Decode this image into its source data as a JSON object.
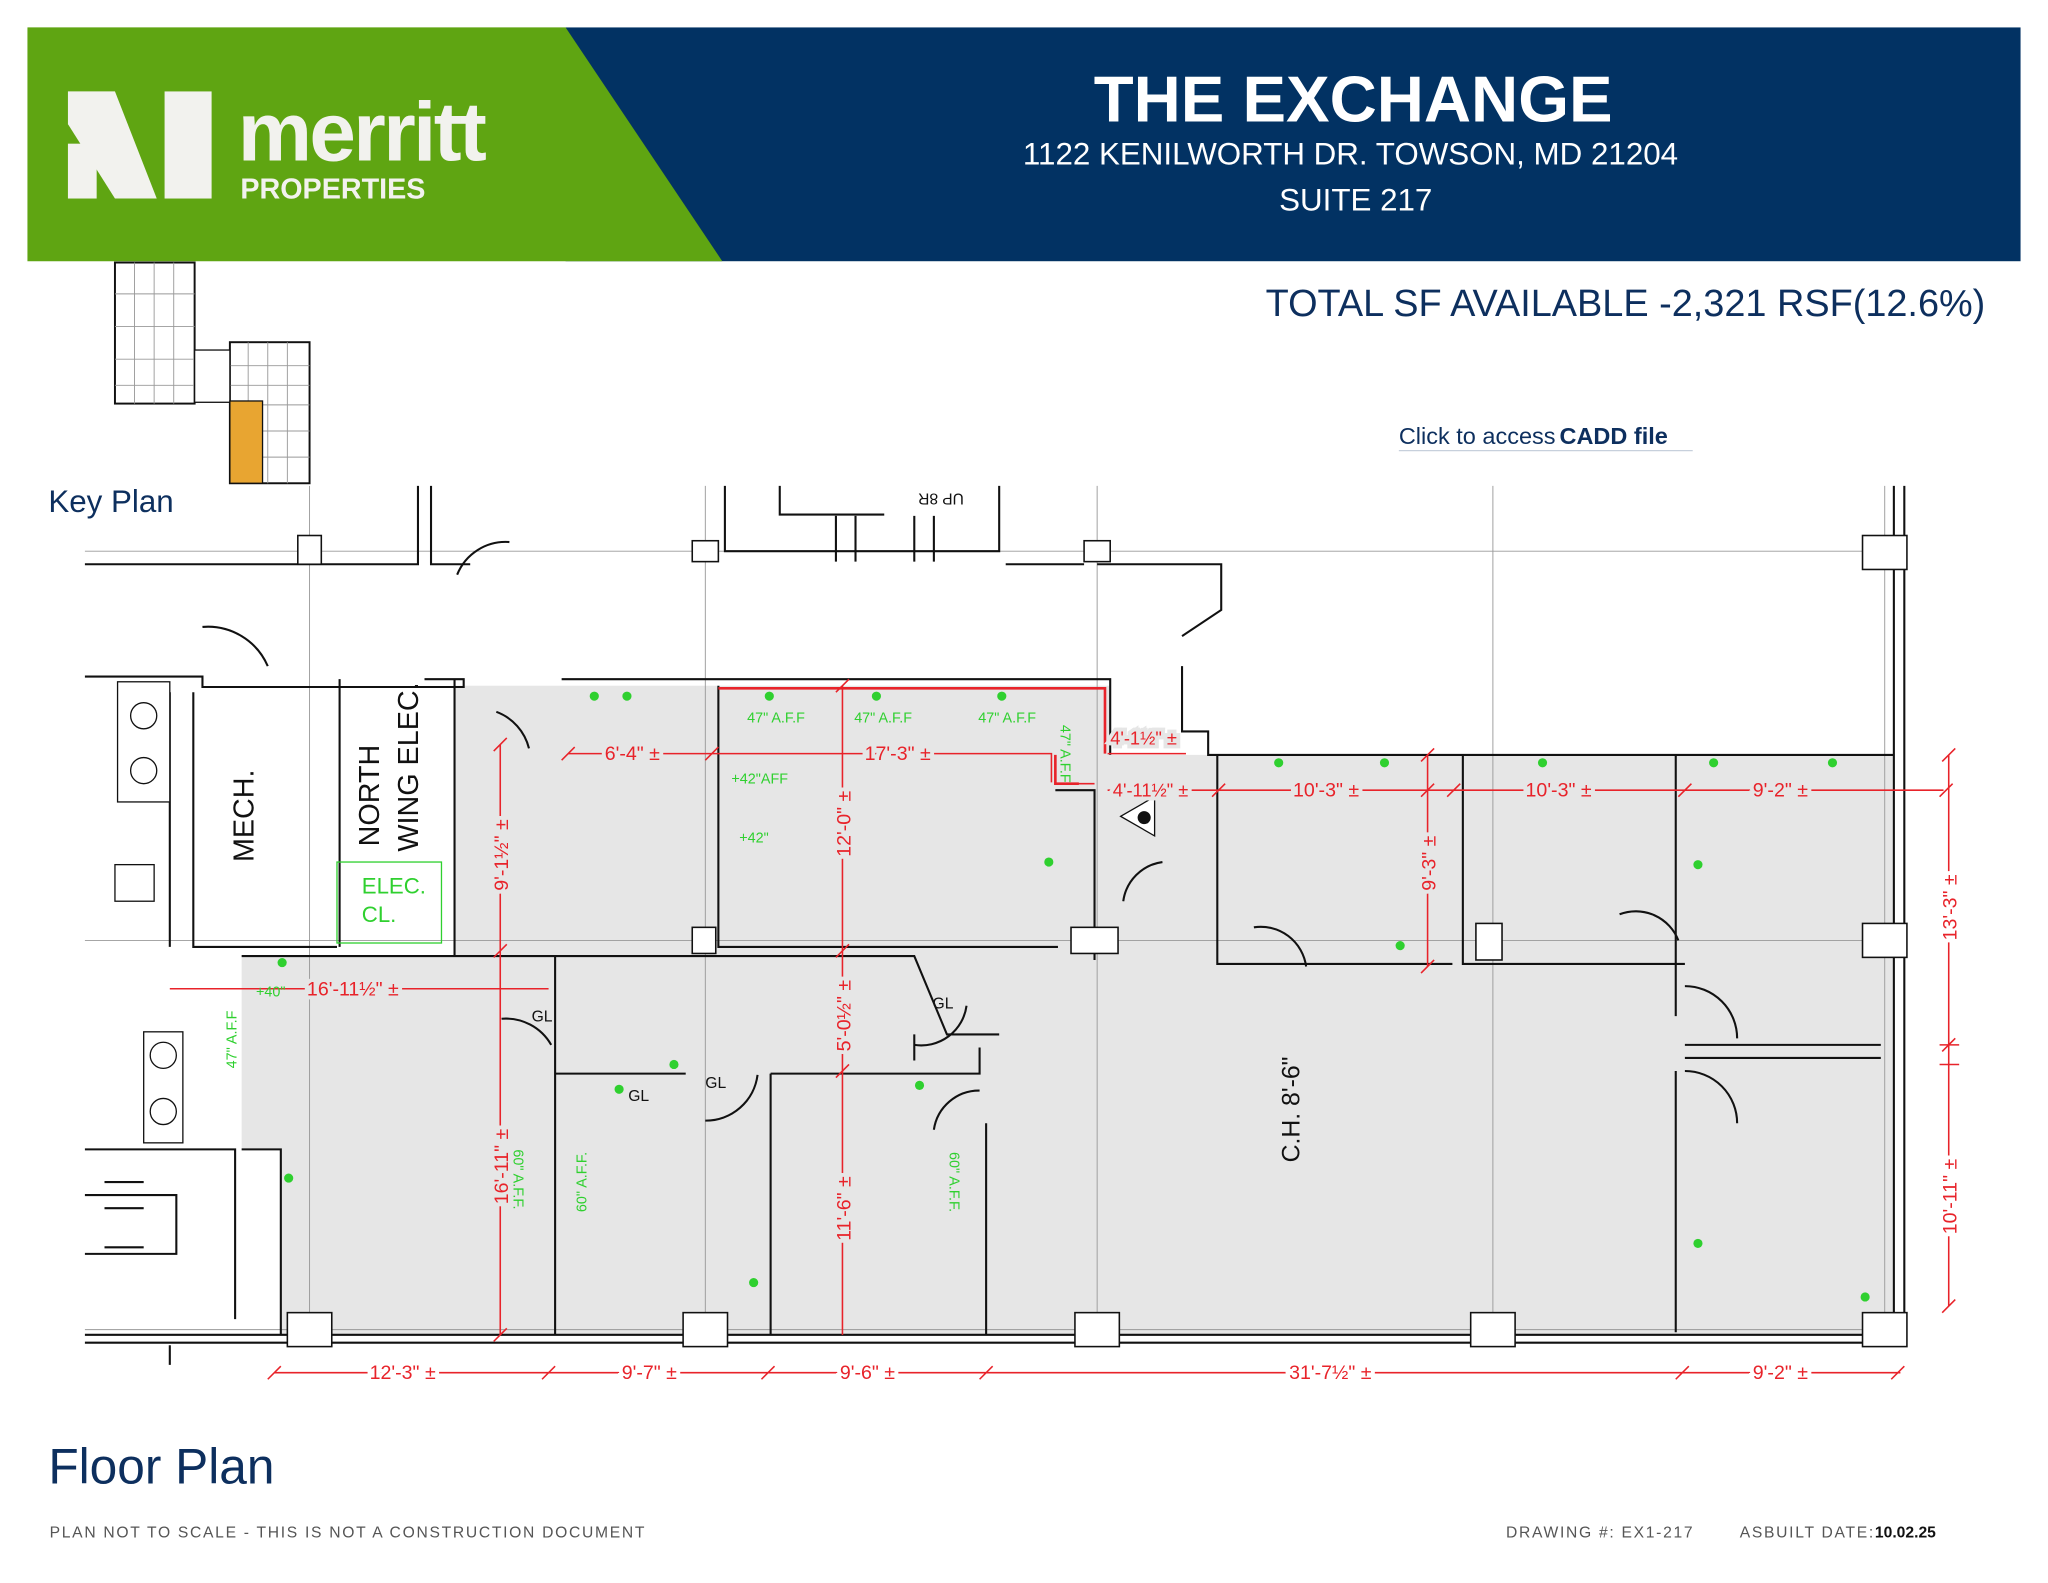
{
  "header": {
    "brand_name": "merritt",
    "brand_sub": "PROPERTIES",
    "title": "THE EXCHANGE",
    "address": "1122 KENILWORTH DR.  TOWSON, MD  21204",
    "suite": "SUITE 217",
    "green": "#5fa512",
    "navy": "#023263"
  },
  "total_sf": "TOTAL SF AVAILABLE -2,321 RSF(12.6%)",
  "cadd_link": {
    "prefix": "Click to access",
    "bold": "CADD file"
  },
  "key_plan": {
    "label": "Key Plan",
    "highlight_color": "#e8a531"
  },
  "floor_plan": {
    "title": "Floor Plan",
    "rooms": {
      "mech": "MECH.",
      "north": "NORTH",
      "wing_elec": "WING ELEC.",
      "elec": "ELEC.",
      "cl": "CL.",
      "ceiling": "C.H. 8'-6\"",
      "stair": "UP 8R",
      "gl": [
        "GL",
        "GL",
        "GL",
        "GL"
      ]
    },
    "dimensions": {
      "d1": "6'-4\" ±",
      "d2": "17'-3\" ±",
      "d3": "4'-1½\" ±",
      "d4": "4'-11½\" ±",
      "d5": "10'-3\" ±",
      "d6": "10'-3\" ±",
      "d7": "9'-2\" ±",
      "v1": "9'-1½\" ±",
      "v2": "12'-0\" ±",
      "v3": "9'-3\" ±",
      "v4": "13'-3\" ±",
      "d8": "16'-11½\" ±",
      "v5": "5'-0½\" ±",
      "v6": "16'-11\" ±",
      "v7": "11'-6\" ±",
      "v8": "10'-11\" ±",
      "b1": "12'-3\" ±",
      "b2": "9'-7\" ±",
      "b3": "9'-6\" ±",
      "b4": "31'-7½\" ±",
      "b5": "9'-2\" ±"
    },
    "notes": {
      "a1": "47\"  A.F.F",
      "a2": "47\"  A.F.F",
      "a3": "47\"  A.F.F",
      "a4": "47\" A.F.F",
      "a5": "47\" A.F.F",
      "a6": "+42\"AFF",
      "a7": "+42\"",
      "a8": "+40\"",
      "a9": "60\" A.F.F.",
      "a10": "60\" A.F.F.",
      "a11": "60\" A.F.F."
    }
  },
  "footer": {
    "disclaimer": "PLAN NOT TO SCALE - THIS IS NOT A CONSTRUCTION DOCUMENT",
    "drawing": "DRAWING #: EX1-217",
    "asbuilt_label": "ASBUILT DATE:",
    "asbuilt_date": "10.02.25"
  }
}
